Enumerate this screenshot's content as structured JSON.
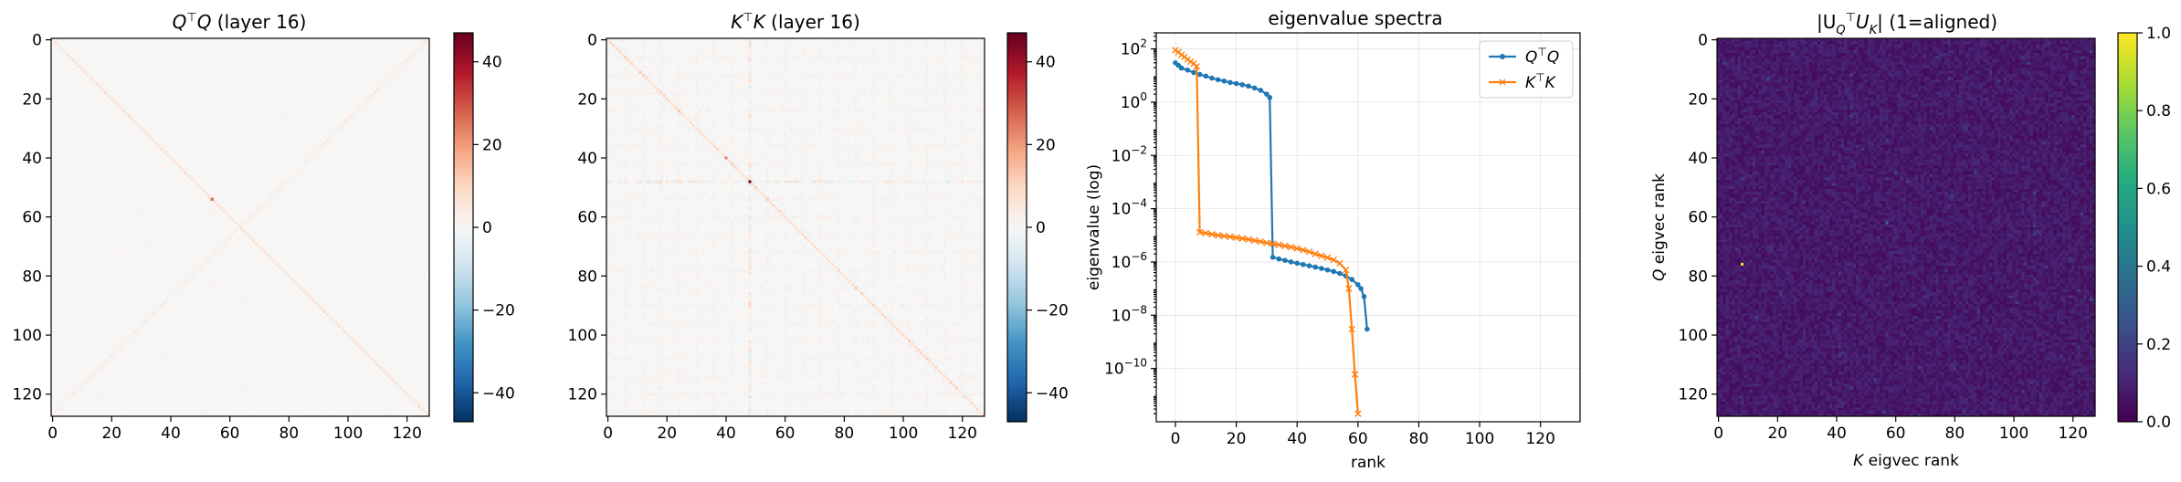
{
  "chart_data": [
    {
      "type": "heatmap",
      "title": "Q⊤Q (layer 16)",
      "title_parts": {
        "pre": "Q",
        "sup": "⊤",
        "mid": "Q",
        "post": " (layer 16)"
      },
      "xlim": [
        0,
        127
      ],
      "ylim": [
        127,
        0
      ],
      "xticks": [
        0,
        20,
        40,
        60,
        80,
        100,
        120
      ],
      "yticks": [
        0,
        20,
        40,
        60,
        80,
        100,
        120
      ],
      "colormap": "RdBu_r",
      "colorbar": {
        "min": -47,
        "max": 47,
        "ticks": [
          40,
          20,
          0,
          -20,
          -40
        ],
        "tick_labels": [
          "40",
          "20",
          "0",
          "−20",
          "−40"
        ]
      },
      "background_value": 0.5,
      "features": {
        "main_diagonal": 6,
        "anti_diagonal": 3,
        "hot_spots": [
          {
            "row": 54,
            "col": 54,
            "value": 25
          }
        ]
      }
    },
    {
      "type": "heatmap",
      "title": "K⊤K (layer 16)",
      "title_parts": {
        "pre": "K",
        "sup": "⊤",
        "mid": "K",
        "post": " (layer 16)"
      },
      "xlim": [
        0,
        127
      ],
      "ylim": [
        127,
        0
      ],
      "xticks": [
        0,
        20,
        40,
        60,
        80,
        100,
        120
      ],
      "yticks": [
        0,
        20,
        40,
        60,
        80,
        100,
        120
      ],
      "colormap": "RdBu_r",
      "colorbar": {
        "min": -47,
        "max": 47,
        "ticks": [
          40,
          20,
          0,
          -20,
          -40
        ],
        "tick_labels": [
          "40",
          "20",
          "0",
          "−20",
          "−40"
        ]
      },
      "background_value": 0.5,
      "features": {
        "main_diagonal": 8,
        "hot_row_col": 48,
        "hot_spots": [
          {
            "row": 48,
            "col": 48,
            "value": 47
          },
          {
            "row": 40,
            "col": 40,
            "value": 25
          }
        ]
      }
    },
    {
      "type": "line",
      "title": "eigenvalue spectra",
      "xlabel": "rank",
      "ylabel": "eigenvalue (log)",
      "yscale": "log",
      "xlim": [
        -6.3,
        133
      ],
      "ylim": [
        1e-12,
        400
      ],
      "xticks": [
        0,
        20,
        40,
        60,
        80,
        100,
        120
      ],
      "yticks": [
        {
          "exp": 2,
          "label": "10",
          "sup": "2"
        },
        {
          "exp": 0,
          "label": "10",
          "sup": "0"
        },
        {
          "exp": -2,
          "label": "10",
          "sup": "−2"
        },
        {
          "exp": -4,
          "label": "10",
          "sup": "−4"
        },
        {
          "exp": -6,
          "label": "10",
          "sup": "−6"
        },
        {
          "exp": -8,
          "label": "10",
          "sup": "−8"
        },
        {
          "exp": -10,
          "label": "10",
          "sup": "−10"
        }
      ],
      "grid": true,
      "legend": "top-right",
      "series": [
        {
          "name": "Q⊤Q",
          "name_parts": {
            "pre": "Q",
            "sup": "⊤",
            "post": "Q"
          },
          "color": "#1f77b4",
          "marker": "circle",
          "x": [
            0,
            1,
            2,
            4,
            6,
            8,
            10,
            12,
            14,
            16,
            18,
            20,
            22,
            24,
            26,
            28,
            30,
            31,
            32,
            34,
            36,
            38,
            40,
            42,
            44,
            46,
            48,
            50,
            52,
            54,
            56,
            58,
            60,
            61,
            62,
            63
          ],
          "y": [
            30,
            24,
            19,
            16,
            13,
            11,
            9.5,
            8,
            7,
            6.2,
            5.5,
            5,
            4.5,
            4,
            3.4,
            2.8,
            2,
            1.5,
            1.5e-06,
            1.3e-06,
            1.15e-06,
            1e-06,
            9e-07,
            8e-07,
            7.2e-07,
            6.4e-07,
            5.7e-07,
            5e-07,
            4.4e-07,
            3.7e-07,
            3e-07,
            2.2e-07,
            1.4e-07,
            1e-07,
            5e-08,
            3e-09
          ]
        },
        {
          "name": "K⊤K",
          "name_parts": {
            "pre": "K",
            "sup": "⊤",
            "post": "K"
          },
          "color": "#ff7f0e",
          "marker": "x",
          "x": [
            0,
            1,
            2,
            3,
            4,
            5,
            6,
            7,
            8,
            10,
            12,
            14,
            16,
            18,
            20,
            22,
            24,
            26,
            28,
            30,
            32,
            34,
            36,
            38,
            40,
            42,
            44,
            46,
            48,
            50,
            52,
            54,
            56,
            57,
            58,
            59,
            60
          ],
          "y": [
            90,
            75,
            60,
            50,
            40,
            33,
            28,
            22,
            1.3e-05,
            1.2e-05,
            1.1e-05,
            1e-05,
            9.4e-06,
            8.8e-06,
            8.2e-06,
            7.6e-06,
            7e-06,
            6.4e-06,
            5.8e-06,
            5.2e-06,
            4.8e-06,
            4.4e-06,
            4e-06,
            3.6e-06,
            3.2e-06,
            2.8e-06,
            2.4e-06,
            2e-06,
            1.7e-06,
            1.45e-06,
            1.2e-06,
            9e-07,
            5e-07,
            1e-07,
            3e-09,
            6e-11,
            2e-12
          ]
        }
      ]
    },
    {
      "type": "heatmap",
      "title": "|U_Q⊤ U_K| (1=aligned)",
      "title_parts": {
        "pre": "|U",
        "sub1": "Q",
        "sup": "⊤",
        "mid": "U",
        "sub2": "K",
        "post": "| (1=aligned)"
      },
      "xlabel": "K eigvec rank",
      "xlabel_parts": {
        "italic": "K",
        "post": " eigvec rank"
      },
      "ylabel": "Q eigvec rank",
      "ylabel_parts": {
        "italic": "Q",
        "post": " eigvec rank"
      },
      "xlim": [
        0,
        127
      ],
      "ylim": [
        127,
        0
      ],
      "xticks": [
        0,
        20,
        40,
        60,
        80,
        100,
        120
      ],
      "yticks": [
        0,
        20,
        40,
        60,
        80,
        100,
        120
      ],
      "colormap": "viridis",
      "colorbar": {
        "min": 0,
        "max": 1,
        "ticks": [
          1,
          0.8,
          0.6,
          0.4,
          0.2,
          0
        ],
        "tick_labels": [
          "1.0",
          "0.8",
          "0.6",
          "0.4",
          "0.2",
          "0.0"
        ]
      },
      "features": {
        "background_mean": 0.07,
        "hot_spots": [
          {
            "row": 76,
            "col": 8,
            "value": 1.0
          },
          {
            "row": 62,
            "col": 57,
            "value": 0.35
          }
        ]
      }
    }
  ]
}
